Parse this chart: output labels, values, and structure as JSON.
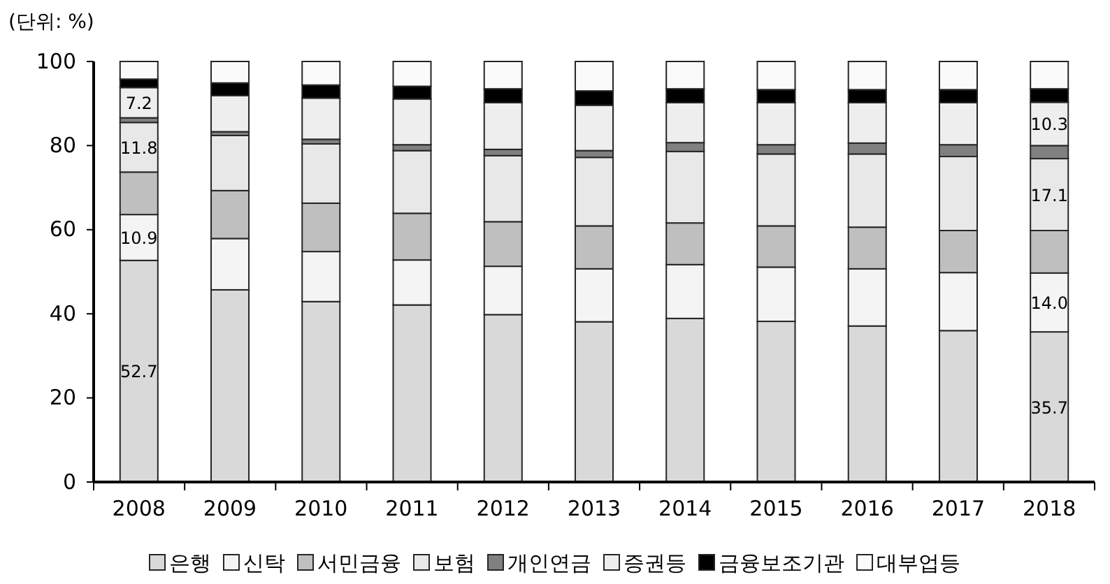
{
  "chart_data": {
    "type": "bar",
    "stacked": true,
    "ylabel": "(단위: %)",
    "categories": [
      "2008",
      "2009",
      "2010",
      "2011",
      "2012",
      "2013",
      "2014",
      "2015",
      "2016",
      "2017",
      "2018"
    ],
    "ylim": [
      0,
      100
    ],
    "yticks": [
      0,
      20,
      40,
      60,
      80,
      100
    ],
    "grid": false,
    "legend": "bottom",
    "series": [
      {
        "name": "은행",
        "color": "#d9d9d9",
        "values": [
          52.7,
          45.7,
          42.9,
          42.1,
          39.8,
          38.1,
          38.9,
          38.2,
          37.1,
          36.0,
          35.7
        ],
        "value_labels": [
          "52.7",
          null,
          null,
          null,
          null,
          null,
          null,
          null,
          null,
          null,
          "35.7"
        ]
      },
      {
        "name": "신탁",
        "color": "#f4f4f4",
        "values": [
          10.9,
          12.2,
          11.9,
          10.7,
          11.5,
          12.6,
          12.8,
          12.9,
          13.6,
          13.8,
          14.0
        ],
        "value_labels": [
          "10.9",
          null,
          null,
          null,
          null,
          null,
          null,
          null,
          null,
          null,
          "14.0"
        ]
      },
      {
        "name": "서민금융",
        "color": "#bfbfbf",
        "values": [
          10.1,
          11.4,
          11.5,
          11.1,
          10.6,
          10.2,
          9.9,
          9.8,
          9.9,
          10.0,
          10.1
        ]
      },
      {
        "name": "보험",
        "color": "#e8e8e8",
        "values": [
          11.8,
          13.1,
          14.1,
          14.9,
          15.7,
          16.3,
          17.0,
          17.1,
          17.4,
          17.6,
          17.1
        ],
        "value_labels": [
          "11.8",
          null,
          null,
          null,
          null,
          null,
          null,
          null,
          null,
          null,
          "17.1"
        ]
      },
      {
        "name": "개인연금",
        "color": "#808080",
        "values": [
          1.1,
          0.9,
          1.1,
          1.4,
          1.5,
          1.6,
          2.1,
          2.2,
          2.6,
          2.8,
          3.1
        ]
      },
      {
        "name": "증권등",
        "color": "#eeeeee",
        "values": [
          7.2,
          8.6,
          9.8,
          10.9,
          11.1,
          10.8,
          9.5,
          10.0,
          9.6,
          10.0,
          10.3
        ],
        "value_labels": [
          "7.2",
          null,
          null,
          null,
          null,
          null,
          null,
          null,
          null,
          null,
          "10.3"
        ]
      },
      {
        "name": "금융보조기관",
        "color": "#000000",
        "values": [
          2.0,
          3.0,
          3.1,
          3.0,
          3.3,
          3.4,
          3.3,
          3.1,
          3.1,
          3.1,
          3.2
        ]
      },
      {
        "name": "대부업등",
        "color": "#fafafa",
        "values": [
          4.2,
          5.1,
          5.6,
          5.9,
          6.5,
          7.0,
          6.5,
          6.7,
          6.7,
          6.7,
          6.5
        ]
      }
    ]
  }
}
